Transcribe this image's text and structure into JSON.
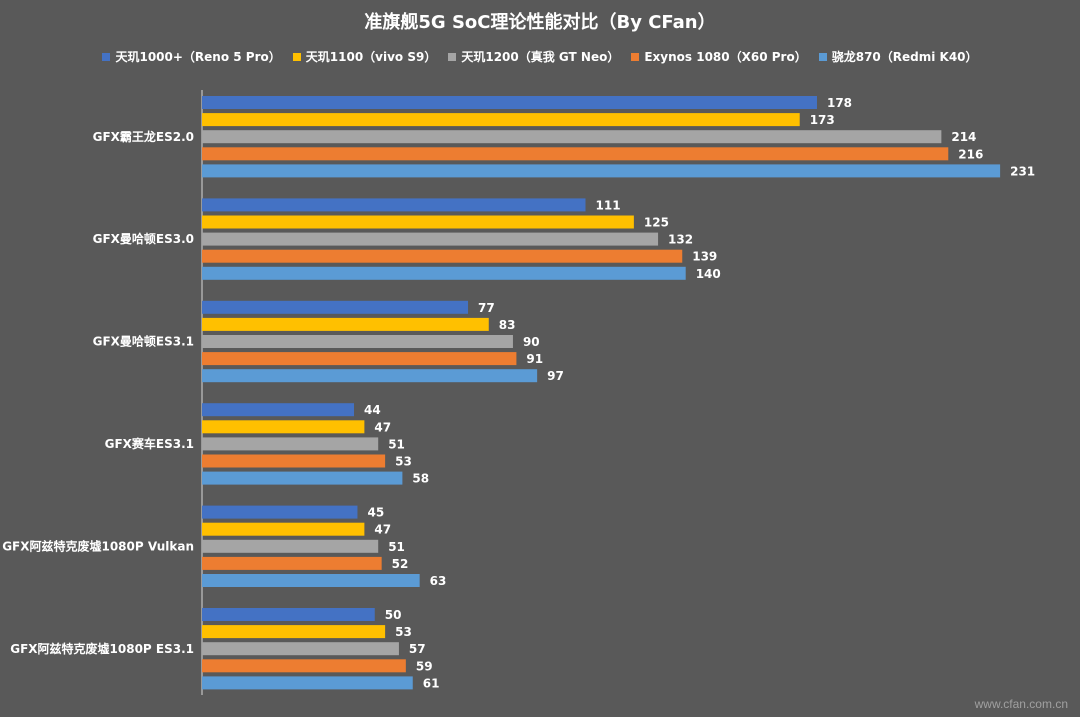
{
  "chart_data": {
    "type": "bar",
    "orientation": "horizontal",
    "title": "准旗舰5G SoC理论性能对比（By CFan）",
    "categories": [
      "GFX霸王龙ES2.0",
      "GFX曼哈顿ES3.0",
      "GFX曼哈顿ES3.1",
      "GFX赛车ES3.1",
      "GFX阿兹特克废墟1080P Vulkan",
      "GFX阿兹特克废墟1080P ES3.1"
    ],
    "series": [
      {
        "name": "天玑1000+（Reno 5 Pro）",
        "color": "#4472c4",
        "values": [
          178,
          111,
          77,
          44,
          45,
          50
        ]
      },
      {
        "name": "天玑1100（vivo S9）",
        "color": "#ffc000",
        "values": [
          173,
          125,
          83,
          47,
          47,
          53
        ]
      },
      {
        "name": "天玑1200（真我 GT Neo）",
        "color": "#a5a5a5",
        "values": [
          214,
          132,
          90,
          51,
          51,
          57
        ]
      },
      {
        "name": "Exynos 1080（X60 Pro）",
        "color": "#ed7d31",
        "values": [
          216,
          139,
          91,
          53,
          52,
          59
        ]
      },
      {
        "name": "骁龙870（Redmi K40）",
        "color": "#5b9bd5",
        "values": [
          231,
          140,
          97,
          58,
          63,
          61
        ]
      }
    ],
    "xlim": [
      0,
      250
    ],
    "grid": false,
    "legend_position": "top"
  },
  "watermark": "www.cfan.com.cn"
}
